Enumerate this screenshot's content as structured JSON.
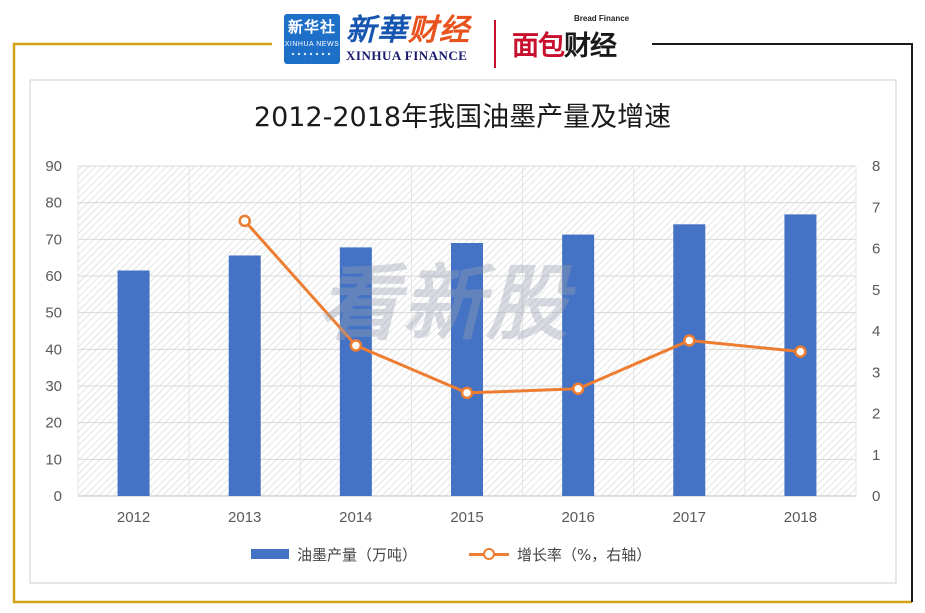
{
  "header": {
    "logo_xinhua_news_cn": "新华社",
    "logo_xinhua_news_en": "XINHUA NEWS",
    "logo_xinhua_finance_cn_a": "新華",
    "logo_xinhua_finance_cn_b": "财经",
    "logo_xinhua_finance_en": "XINHUA FINANCE",
    "logo_bread_finance_en": "Bread Finance",
    "logo_bread_finance_cn_a": "面包",
    "logo_bread_finance_cn_b": "财经"
  },
  "watermark": "看新股",
  "colors": {
    "bar": "#4472c4",
    "line": "#ed7d31",
    "frame_gold": "#d4a017",
    "frame_dark": "#1a1a1a",
    "grid": "#d0d0d0",
    "plot_hatch": "#e6e6e6"
  },
  "chart_data": {
    "type": "bar",
    "title": "2012-2018年我国油墨产量及增速",
    "categories": [
      "2012",
      "2013",
      "2014",
      "2015",
      "2016",
      "2017",
      "2018"
    ],
    "series": [
      {
        "name": "油墨产量（万吨）",
        "type": "bar",
        "axis": "left",
        "values": [
          61.5,
          65.6,
          67.8,
          69.0,
          71.3,
          74.1,
          76.8
        ]
      },
      {
        "name": "增长率（%，右轴）",
        "type": "line",
        "axis": "right",
        "values": [
          null,
          6.67,
          3.65,
          2.5,
          2.6,
          3.77,
          3.5
        ]
      }
    ],
    "y_left": {
      "min": 0,
      "max": 90,
      "ticks": [
        "0",
        "10",
        "20",
        "30",
        "40",
        "50",
        "60",
        "70",
        "80",
        "90"
      ]
    },
    "y_right": {
      "min": 0,
      "max": 8,
      "ticks": [
        "0",
        "1",
        "2",
        "3",
        "4",
        "5",
        "6",
        "7",
        "8"
      ]
    },
    "grid": true,
    "legend_position": "bottom"
  }
}
